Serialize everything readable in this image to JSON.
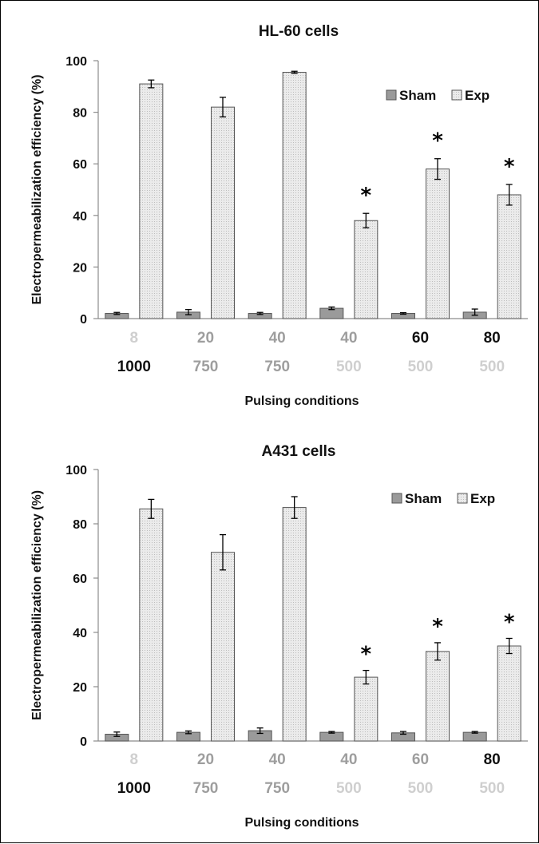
{
  "colors": {
    "sham_fill": "#9a9a9a",
    "exp_fill": "#e6e6e6",
    "bar_stroke": "#555555",
    "tick_dark": "#111111",
    "tick_mid": "#9e9e9e",
    "tick_light": "#cfcfcf"
  },
  "chart_data": [
    {
      "type": "bar",
      "title": "HL-60 cells",
      "ylabel": "Electropermeabilization efficiency (%)",
      "xlabel": "Pulsing conditions",
      "ylim": [
        0,
        100
      ],
      "yticks": [
        0,
        20,
        40,
        60,
        80,
        100
      ],
      "grid": false,
      "legend_position": "top-right",
      "categories_row1": [
        "8",
        "20",
        "40",
        "40",
        "60",
        "80"
      ],
      "categories_row2": [
        "1000",
        "750",
        "750",
        "500",
        "500",
        "500"
      ],
      "categories_row1_tone": [
        "light",
        "mid",
        "mid",
        "mid",
        "dark",
        "dark"
      ],
      "categories_row2_tone": [
        "dark",
        "mid",
        "mid",
        "light",
        "light",
        "light"
      ],
      "series": [
        {
          "name": "Sham",
          "values": [
            2,
            2.5,
            2,
            4,
            2,
            2.5
          ],
          "errors": [
            0.4,
            1,
            0.4,
            0.5,
            0.3,
            1.2
          ]
        },
        {
          "name": "Exp",
          "values": [
            91,
            82,
            95.5,
            38,
            58,
            48
          ],
          "errors": [
            1.5,
            3.8,
            0.4,
            2.8,
            4,
            4
          ]
        }
      ],
      "significance": [
        "",
        "",
        "",
        "*",
        "*",
        "*"
      ]
    },
    {
      "type": "bar",
      "title": "A431 cells",
      "ylabel": "Electropermeabilization efficiency (%)",
      "xlabel": "Pulsing conditions",
      "ylim": [
        0,
        100
      ],
      "yticks": [
        0,
        20,
        40,
        60,
        80,
        100
      ],
      "grid": false,
      "legend_position": "top-right",
      "categories_row1": [
        "8",
        "20",
        "40",
        "40",
        "60",
        "80"
      ],
      "categories_row2": [
        "1000",
        "750",
        "750",
        "500",
        "500",
        "500"
      ],
      "categories_row1_tone": [
        "light",
        "mid",
        "mid",
        "mid",
        "mid",
        "dark"
      ],
      "categories_row2_tone": [
        "dark",
        "mid",
        "mid",
        "light",
        "light",
        "light"
      ],
      "series": [
        {
          "name": "Sham",
          "values": [
            2.5,
            3.2,
            3.8,
            3.2,
            3,
            3.2
          ],
          "errors": [
            0.8,
            0.5,
            1,
            0.3,
            0.5,
            0.3
          ]
        },
        {
          "name": "Exp",
          "values": [
            85.5,
            69.5,
            86,
            23.5,
            33,
            35
          ],
          "errors": [
            3.5,
            6.5,
            4,
            2.5,
            3.2,
            2.8
          ]
        }
      ],
      "significance": [
        "",
        "",
        "",
        "*",
        "*",
        "*"
      ]
    }
  ]
}
